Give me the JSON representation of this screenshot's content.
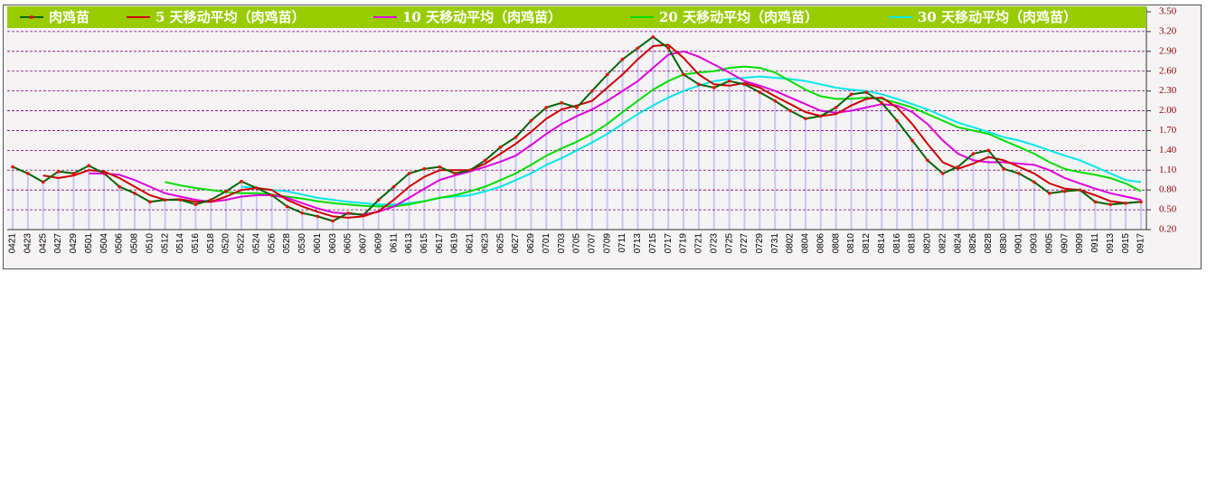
{
  "chart_data": {
    "type": "line",
    "categories": [
      "0421",
      "0423",
      "0425",
      "0427",
      "0429",
      "0501",
      "0504",
      "0506",
      "0508",
      "0510",
      "0512",
      "0514",
      "0516",
      "0518",
      "0520",
      "0522",
      "0524",
      "0526",
      "0528",
      "0530",
      "0601",
      "0603",
      "0605",
      "0607",
      "0609",
      "0611",
      "0613",
      "0615",
      "0617",
      "0619",
      "0621",
      "0623",
      "0625",
      "0627",
      "0629",
      "0701",
      "0703",
      "0705",
      "0707",
      "0709",
      "0711",
      "0713",
      "0715",
      "0717",
      "0719",
      "0721",
      "0723",
      "0725",
      "0727",
      "0729",
      "0731",
      "0802",
      "0804",
      "0806",
      "0808",
      "0810",
      "0812",
      "0814",
      "0816",
      "0818",
      "0820",
      "0822",
      "0824",
      "0826",
      "0828",
      "0830",
      "0901",
      "0903",
      "0905",
      "0907",
      "0909",
      "0911",
      "0913",
      "0915",
      "0917"
    ],
    "series": [
      {
        "name": "肉鸡苗",
        "color": "#006400",
        "marker_color": "#ff0000",
        "values": [
          1.15,
          1.05,
          0.92,
          1.08,
          1.05,
          1.17,
          1.05,
          0.85,
          0.75,
          0.62,
          0.65,
          0.65,
          0.58,
          0.65,
          0.78,
          0.93,
          0.83,
          0.72,
          0.55,
          0.45,
          0.4,
          0.33,
          0.45,
          0.42,
          0.65,
          0.85,
          1.05,
          1.12,
          1.15,
          1.05,
          1.1,
          1.25,
          1.45,
          1.6,
          1.85,
          2.05,
          2.12,
          2.05,
          2.3,
          2.55,
          2.78,
          2.95,
          3.12,
          2.95,
          2.55,
          2.4,
          2.35,
          2.45,
          2.4,
          2.28,
          2.15,
          2.0,
          1.88,
          1.92,
          2.05,
          2.25,
          2.28,
          2.12,
          1.85,
          1.55,
          1.25,
          1.05,
          1.15,
          1.35,
          1.4,
          1.12,
          1.05,
          0.92,
          0.75,
          0.78,
          0.8,
          0.62,
          0.58,
          0.6,
          0.62
        ]
      },
      {
        "name": "5 天移动平均（肉鸡苗）",
        "color": "#cc0000",
        "values": [
          null,
          null,
          1.02,
          0.98,
          1.02,
          1.1,
          1.08,
          0.98,
          0.85,
          0.72,
          0.65,
          0.66,
          0.62,
          0.62,
          0.7,
          0.8,
          0.83,
          0.8,
          0.65,
          0.55,
          0.47,
          0.4,
          0.38,
          0.4,
          0.48,
          0.65,
          0.85,
          1.0,
          1.1,
          1.1,
          1.1,
          1.2,
          1.35,
          1.5,
          1.68,
          1.88,
          2.02,
          2.08,
          2.15,
          2.35,
          2.55,
          2.78,
          2.98,
          3.0,
          2.8,
          2.55,
          2.4,
          2.38,
          2.42,
          2.35,
          2.22,
          2.1,
          1.98,
          1.92,
          1.95,
          2.08,
          2.18,
          2.2,
          2.05,
          1.8,
          1.5,
          1.22,
          1.12,
          1.2,
          1.3,
          1.25,
          1.15,
          1.05,
          0.9,
          0.82,
          0.8,
          0.72,
          0.63,
          0.6,
          0.62
        ]
      },
      {
        "name": "10 天移动平均（肉鸡苗）",
        "color": "#dd00dd",
        "values": [
          null,
          null,
          null,
          null,
          null,
          1.05,
          1.05,
          1.03,
          0.95,
          0.85,
          0.75,
          0.7,
          0.65,
          0.62,
          0.65,
          0.7,
          0.72,
          0.72,
          0.68,
          0.6,
          0.52,
          0.46,
          0.44,
          0.43,
          0.47,
          0.55,
          0.68,
          0.82,
          0.95,
          1.02,
          1.08,
          1.15,
          1.23,
          1.32,
          1.48,
          1.65,
          1.8,
          1.92,
          2.02,
          2.15,
          2.3,
          2.45,
          2.65,
          2.85,
          2.9,
          2.82,
          2.7,
          2.58,
          2.45,
          2.38,
          2.3,
          2.2,
          2.1,
          2.0,
          1.97,
          2.0,
          2.05,
          2.1,
          2.08,
          1.98,
          1.8,
          1.55,
          1.35,
          1.25,
          1.22,
          1.22,
          1.2,
          1.18,
          1.1,
          0.98,
          0.9,
          0.82,
          0.75,
          0.7,
          0.65
        ]
      },
      {
        "name": "20 天移动平均（肉鸡苗）",
        "color": "#00dd00",
        "values": [
          null,
          null,
          null,
          null,
          null,
          null,
          null,
          null,
          null,
          null,
          0.92,
          0.87,
          0.83,
          0.8,
          0.77,
          0.75,
          0.75,
          0.73,
          0.7,
          0.67,
          0.63,
          0.6,
          0.58,
          0.56,
          0.55,
          0.55,
          0.58,
          0.63,
          0.68,
          0.72,
          0.78,
          0.85,
          0.95,
          1.05,
          1.18,
          1.32,
          1.43,
          1.53,
          1.65,
          1.8,
          1.98,
          2.15,
          2.32,
          2.45,
          2.55,
          2.58,
          2.6,
          2.65,
          2.67,
          2.65,
          2.58,
          2.45,
          2.32,
          2.22,
          2.18,
          2.18,
          2.2,
          2.18,
          2.12,
          2.05,
          1.95,
          1.85,
          1.75,
          1.7,
          1.65,
          1.55,
          1.45,
          1.35,
          1.22,
          1.12,
          1.07,
          1.03,
          0.98,
          0.9,
          0.78
        ]
      },
      {
        "name": "30 天移动平均（肉鸡苗）",
        "color": "#00e8e8",
        "values": [
          null,
          null,
          null,
          null,
          null,
          null,
          null,
          null,
          null,
          null,
          null,
          null,
          null,
          null,
          null,
          0.85,
          0.83,
          0.8,
          0.78,
          0.73,
          0.68,
          0.65,
          0.62,
          0.6,
          0.58,
          0.58,
          0.6,
          0.63,
          0.68,
          0.7,
          0.72,
          0.78,
          0.85,
          0.95,
          1.05,
          1.18,
          1.28,
          1.4,
          1.52,
          1.65,
          1.8,
          1.95,
          2.08,
          2.2,
          2.3,
          2.38,
          2.45,
          2.48,
          2.5,
          2.52,
          2.5,
          2.48,
          2.45,
          2.4,
          2.35,
          2.32,
          2.3,
          2.25,
          2.18,
          2.1,
          2.02,
          1.92,
          1.82,
          1.75,
          1.68,
          1.6,
          1.55,
          1.48,
          1.4,
          1.32,
          1.25,
          1.15,
          1.05,
          0.95,
          0.92
        ]
      }
    ],
    "ylim": [
      0.2,
      3.5
    ],
    "yticks": [
      {
        "value": 0.2,
        "label": "0.20"
      },
      {
        "value": 0.5,
        "label": "0.50"
      },
      {
        "value": 0.8,
        "label": "0.80"
      },
      {
        "value": 1.1,
        "label": "1.10"
      },
      {
        "value": 1.4,
        "label": "1.40"
      },
      {
        "value": 1.7,
        "label": "1.70"
      },
      {
        "value": 2.0,
        "label": "2.00"
      },
      {
        "value": 2.3,
        "label": "2.30"
      },
      {
        "value": 2.6,
        "label": "2.60"
      },
      {
        "value": 2.9,
        "label": "2.90"
      },
      {
        "value": 3.2,
        "label": "3.20"
      },
      {
        "value": 3.5,
        "label": "3.50"
      }
    ],
    "grid": true,
    "legend": "top",
    "axis_side": "right",
    "bar_color": "#c8c8f4"
  }
}
